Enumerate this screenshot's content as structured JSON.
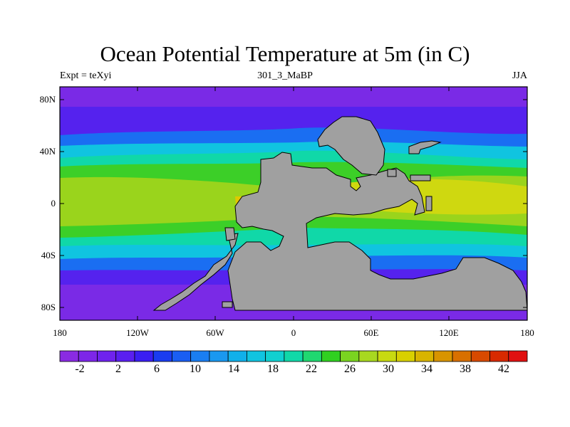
{
  "header": {
    "title": "Ocean Potential Temperature at 5m (in C)",
    "left_label": "Expt = teXyi",
    "center_label": "301_3_MaBP",
    "right_label": "JJA"
  },
  "axes": {
    "y_ticks": [
      "80N",
      "40N",
      "0",
      "40S",
      "80S"
    ],
    "x_ticks": [
      "180",
      "120W",
      "60W",
      "0",
      "60E",
      "120E",
      "180"
    ]
  },
  "colorbar": {
    "labels": [
      "-2",
      "2",
      "6",
      "10",
      "14",
      "18",
      "22",
      "26",
      "30",
      "34",
      "38",
      "42"
    ],
    "colors": [
      "#8a2be2",
      "#7d26e8",
      "#6f22ee",
      "#5a1ff0",
      "#3a1ef2",
      "#1a3cf0",
      "#1a5ef2",
      "#1a7ef2",
      "#1a98f0",
      "#10b0ea",
      "#10c4e0",
      "#10d0d0",
      "#10d8a8",
      "#20d870",
      "#30d020",
      "#7ad420",
      "#a8d820",
      "#c8da10",
      "#d8d000",
      "#d8b400",
      "#d89400",
      "#d87000",
      "#d84a00",
      "#d82a00",
      "#e01010"
    ]
  },
  "map": {
    "land_color": "#a0a0a0",
    "colors": {
      "polar": "#7a2ae6",
      "subpolar": "#5522ee",
      "cool": "#1a6ef2",
      "mid": "#10c4e0",
      "temperate": "#10d8a8",
      "warm": "#3ccf28",
      "tropical": "#9ad41c",
      "hot": "#cfd810",
      "hottest": "#e0c800"
    }
  }
}
